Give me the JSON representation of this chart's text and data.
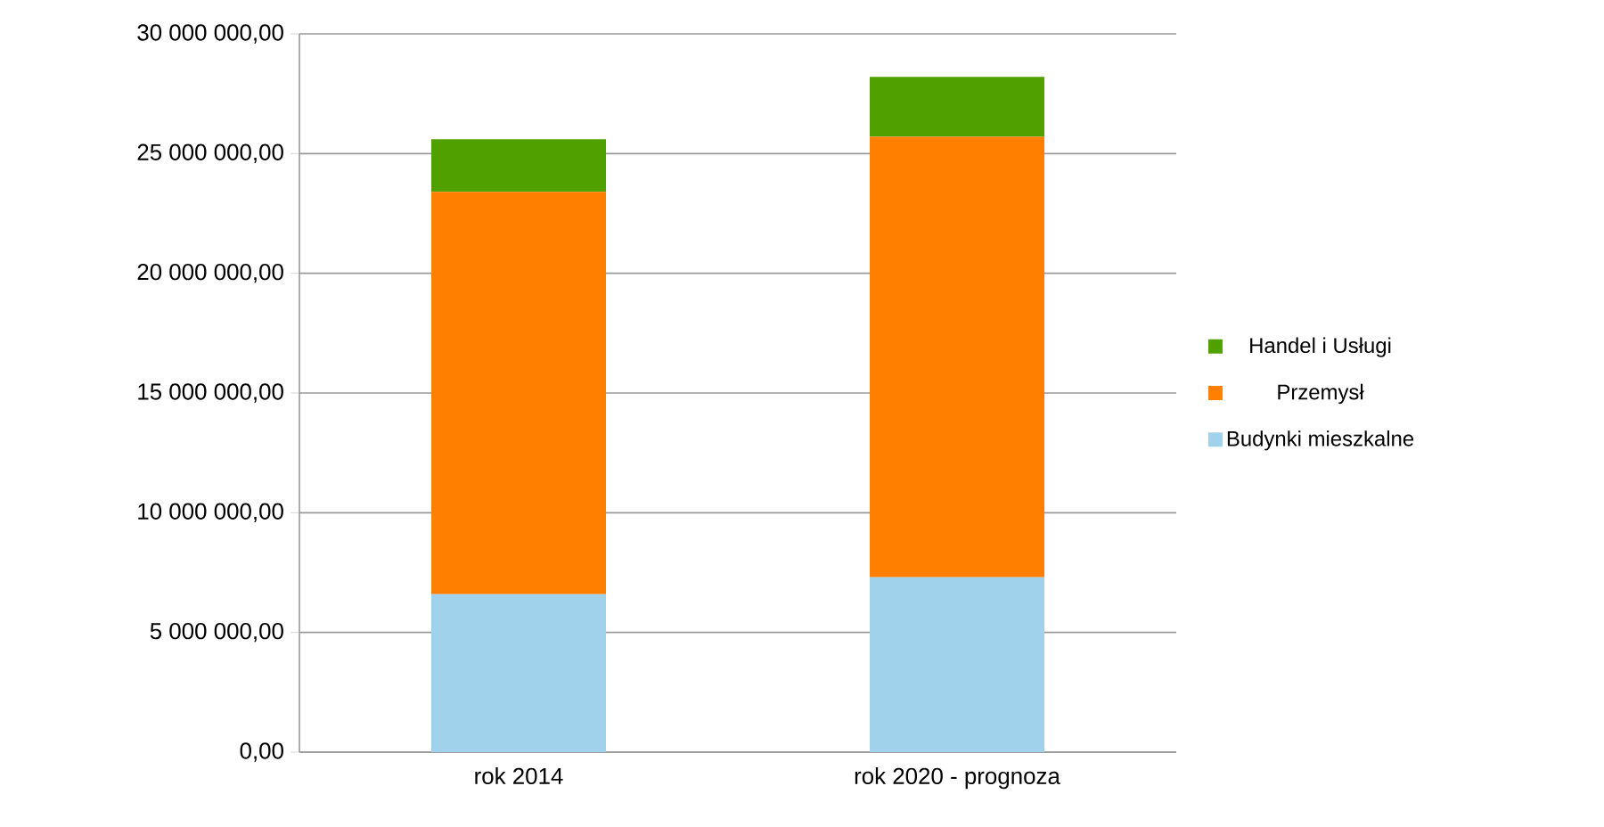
{
  "chart_data": {
    "type": "bar",
    "stacked": true,
    "categories": [
      "rok 2014",
      "rok 2020 - prognoza"
    ],
    "series": [
      {
        "name": "Budynki mieszkalne",
        "color": "#a0d2eb",
        "values": [
          6600000,
          7300000
        ]
      },
      {
        "name": "Przemysł",
        "color": "#ff8000",
        "values": [
          16800000,
          18400000
        ]
      },
      {
        "name": "Handel i Usługi",
        "color": "#50a000",
        "values": [
          2200000,
          2500000
        ]
      }
    ],
    "ylim": [
      0,
      30000000
    ],
    "yticks": [
      {
        "value": 0,
        "label": "0,00"
      },
      {
        "value": 5000000,
        "label": "5 000 000,00"
      },
      {
        "value": 10000000,
        "label": "10 000 000,00"
      },
      {
        "value": 15000000,
        "label": "15 000 000,00"
      },
      {
        "value": 20000000,
        "label": "20 000 000,00"
      },
      {
        "value": 25000000,
        "label": "25 000 000,00"
      },
      {
        "value": 30000000,
        "label": "30 000 000,00"
      }
    ],
    "grid": "y",
    "legend": "right"
  }
}
